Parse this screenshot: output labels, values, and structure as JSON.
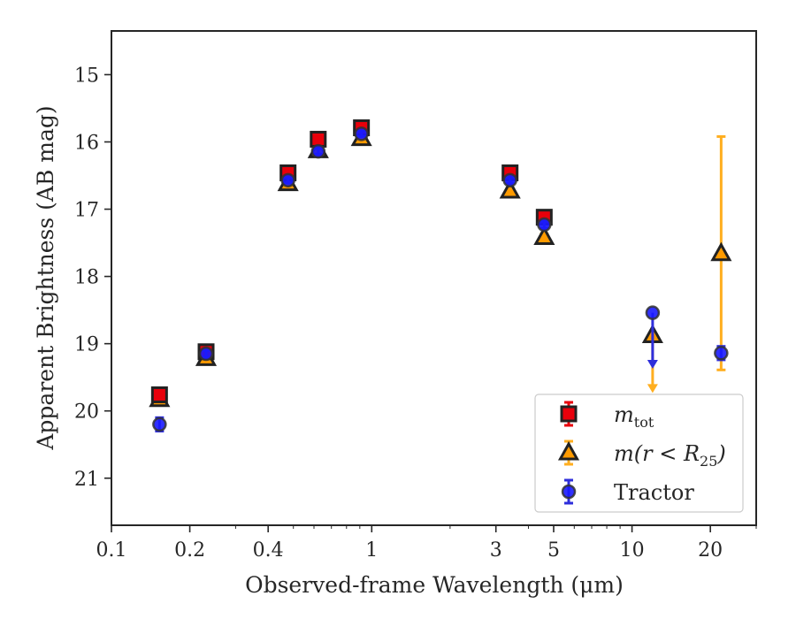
{
  "chart_data": {
    "type": "scatter",
    "xlabel": "Observed-frame Wavelength (μm)",
    "ylabel": "Apparent Brightness (AB mag)",
    "xscale": "log",
    "xlim": [
      0.1,
      30
    ],
    "ylim": [
      21.7,
      14.35
    ],
    "y_inverted": true,
    "xticks": [
      0.1,
      0.2,
      0.4,
      1,
      3,
      5,
      10,
      20
    ],
    "xtick_labels": [
      "0.1",
      "0.2",
      "0.4",
      "1",
      "3",
      "5",
      "10",
      "20"
    ],
    "yticks": [
      15,
      16,
      17,
      18,
      19,
      20,
      21
    ],
    "ytick_labels": [
      "15",
      "16",
      "17",
      "18",
      "19",
      "20",
      "21"
    ],
    "grid": false,
    "legend_position": "bottom-right",
    "series": [
      {
        "name": "m_tot",
        "legend_main": "m",
        "legend_sub": "tot",
        "marker": "square",
        "color": "#e8000b",
        "edge_color": "#222222",
        "error_color": "#e8000b",
        "points": [
          {
            "x": 0.153,
            "y": 19.76,
            "err": 0.08
          },
          {
            "x": 0.231,
            "y": 19.12,
            "err": 0.05
          },
          {
            "x": 0.477,
            "y": 16.46,
            "err": 0.05
          },
          {
            "x": 0.623,
            "y": 15.96,
            "err": 0.05
          },
          {
            "x": 0.913,
            "y": 15.79,
            "err": 0.05
          },
          {
            "x": 3.4,
            "y": 16.46,
            "err": 0.05
          },
          {
            "x": 4.6,
            "y": 17.12,
            "err": 0.05
          }
        ]
      },
      {
        "name": "m(r < R25)",
        "legend_main": "m(r < R",
        "legend_sub": "25",
        "legend_tail": ")",
        "marker": "triangle",
        "color": "#ff9b00",
        "edge_color": "#222222",
        "error_color": "#ffae1f",
        "points": [
          {
            "x": 0.153,
            "y": 19.83,
            "err": 0.05
          },
          {
            "x": 0.231,
            "y": 19.22,
            "err": 0.05
          },
          {
            "x": 0.477,
            "y": 16.62,
            "err": 0.04
          },
          {
            "x": 0.623,
            "y": 16.13,
            "err": 0.04
          },
          {
            "x": 0.913,
            "y": 15.95,
            "err": 0.04
          },
          {
            "x": 3.4,
            "y": 16.73,
            "err": 0.04
          },
          {
            "x": 4.6,
            "y": 17.42,
            "err": 0.05
          },
          {
            "x": 12.0,
            "y": 18.88,
            "upper_limit_to": 19.72
          },
          {
            "x": 22.0,
            "y": 17.66,
            "err_low": 1.74,
            "err_high": 1.73
          }
        ]
      },
      {
        "name": "Tractor",
        "marker": "circle",
        "color": "#1a1aff",
        "edge_color": "#333333",
        "error_color": "#2e2edb",
        "points": [
          {
            "x": 0.153,
            "y": 20.2,
            "err": 0.1
          },
          {
            "x": 0.231,
            "y": 19.15,
            "err": 0.05
          },
          {
            "x": 0.477,
            "y": 16.57,
            "err": 0.04
          },
          {
            "x": 0.623,
            "y": 16.14,
            "err": 0.04
          },
          {
            "x": 0.913,
            "y": 15.88,
            "err": 0.04
          },
          {
            "x": 3.4,
            "y": 16.57,
            "err": 0.04
          },
          {
            "x": 4.6,
            "y": 17.23,
            "err": 0.05
          },
          {
            "x": 12.0,
            "y": 18.54,
            "upper_limit_to": 19.36
          },
          {
            "x": 22.0,
            "y": 19.14,
            "err": 0.1
          }
        ]
      }
    ]
  }
}
